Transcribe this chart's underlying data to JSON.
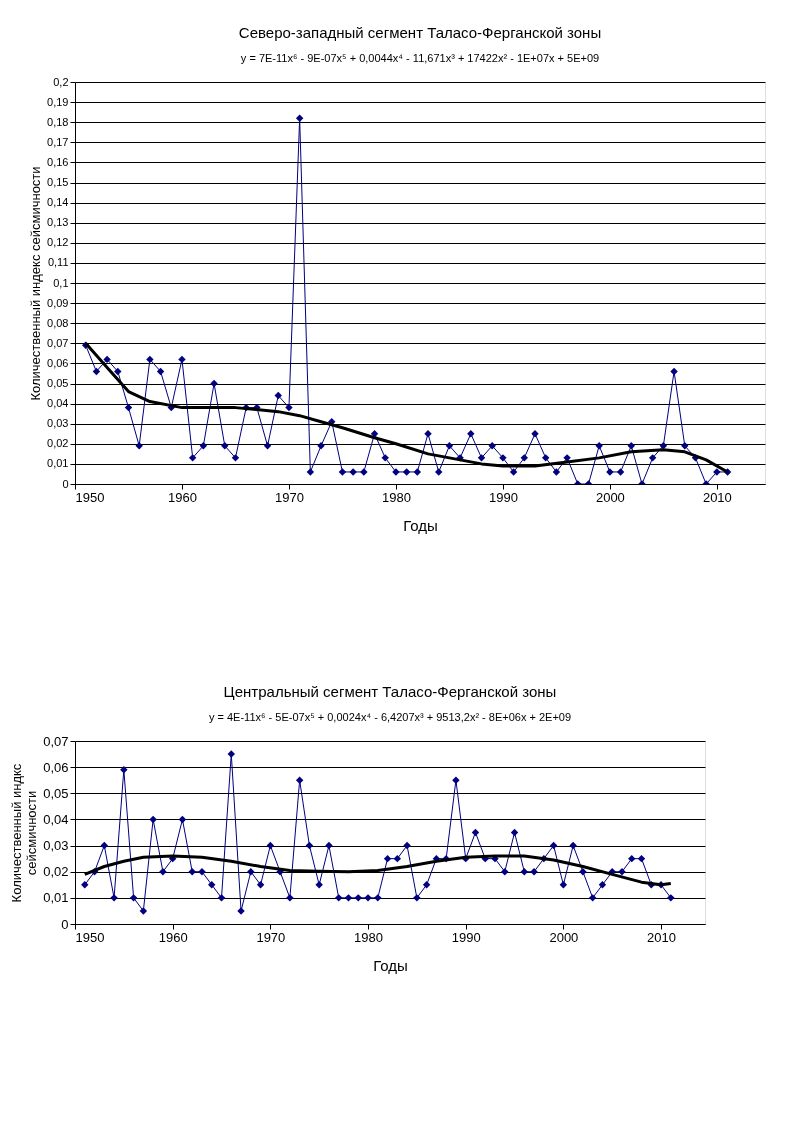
{
  "chart_data": [
    {
      "type": "line",
      "title": "Северо-западный  сегмент Таласо-Ферганской зоны",
      "subtitle": "y = 7E-11x⁶ - 9E-07x⁵ + 0,0044x⁴ - 11,671x³ + 17422x² - 1E+07x  + 5E+09",
      "xlabel": "Годы",
      "ylabel": "Количественный индекс сейсмичности",
      "x": [
        1951,
        1952,
        1953,
        1954,
        1955,
        1956,
        1957,
        1958,
        1959,
        1960,
        1961,
        1962,
        1963,
        1964,
        1965,
        1966,
        1967,
        1968,
        1969,
        1970,
        1971,
        1972,
        1973,
        1974,
        1975,
        1976,
        1977,
        1978,
        1979,
        1980,
        1981,
        1982,
        1983,
        1984,
        1985,
        1986,
        1987,
        1988,
        1989,
        1990,
        1991,
        1992,
        1993,
        1994,
        1995,
        1996,
        1997,
        1998,
        1999,
        2000,
        2001,
        2002,
        2003,
        2004,
        2005,
        2006,
        2007,
        2008,
        2009,
        2010,
        2011
      ],
      "series": [
        {
          "type": "line",
          "marker": "diamond",
          "color": "#000080",
          "values": [
            0.069,
            0.056,
            0.062,
            0.056,
            0.038,
            0.019,
            0.062,
            0.056,
            0.038,
            0.062,
            0.013,
            0.019,
            0.05,
            0.019,
            0.013,
            0.038,
            0.038,
            0.019,
            0.044,
            0.038,
            0.182,
            0.006,
            0.019,
            0.031,
            0.006,
            0.006,
            0.006,
            0.025,
            0.013,
            0.006,
            0.006,
            0.006,
            0.025,
            0.006,
            0.019,
            0.013,
            0.025,
            0.013,
            0.019,
            0.013,
            0.006,
            0.013,
            0.025,
            0.013,
            0.006,
            0.013,
            0,
            0,
            0.019,
            0.006,
            0.006,
            0.019,
            0,
            0.013,
            0.019,
            0.056,
            0.019,
            0.013,
            0,
            0.006,
            0.006
          ]
        },
        {
          "type": "line",
          "marker": "none",
          "color": "#000000",
          "x": [
            1951,
            1953,
            1955,
            1957,
            1960,
            1965,
            1969,
            1971,
            1973,
            1975,
            1978,
            1980,
            1983,
            1986,
            1988,
            1990,
            1993,
            1996,
            1999,
            2002,
            2005,
            2007,
            2009,
            2011
          ],
          "values": [
            0.07,
            0.058,
            0.046,
            0.041,
            0.038,
            0.038,
            0.036,
            0.034,
            0.031,
            0.028,
            0.023,
            0.02,
            0.015,
            0.012,
            0.01,
            0.009,
            0.009,
            0.011,
            0.013,
            0.016,
            0.017,
            0.016,
            0.012,
            0.006
          ]
        }
      ],
      "xlim": [
        1950,
        2014.5
      ],
      "xticks": [
        1950,
        1960,
        1970,
        1980,
        1990,
        2000,
        2010
      ],
      "ylim": [
        0,
        0.2
      ],
      "yticks": [
        0,
        {
          "value": 0.01,
          "label": "0,01"
        },
        {
          "value": 0.02,
          "label": "0,02"
        },
        {
          "value": 0.03,
          "label": "0,03"
        },
        {
          "value": 0.04,
          "label": "0,04"
        },
        {
          "value": 0.05,
          "label": "0,05"
        },
        {
          "value": 0.06,
          "label": "0,06"
        },
        {
          "value": 0.07,
          "label": "0,07"
        },
        {
          "value": 0.08,
          "label": "0,08"
        },
        {
          "value": 0.09,
          "label": "0,09"
        },
        {
          "value": 0.1,
          "label": "0,1"
        },
        {
          "value": 0.11,
          "label": "0,11"
        },
        {
          "value": 0.12,
          "label": "0,12"
        },
        {
          "value": 0.13,
          "label": "0,13"
        },
        {
          "value": 0.14,
          "label": "0,14"
        },
        {
          "value": 0.15,
          "label": "0,15"
        },
        {
          "value": 0.16,
          "label": "0,16"
        },
        {
          "value": 0.17,
          "label": "0,17"
        },
        {
          "value": 0.18,
          "label": "0,18"
        },
        {
          "value": 0.19,
          "label": "0,19"
        },
        {
          "value": 0.2,
          "label": "0,2"
        }
      ],
      "grid": "y",
      "legend": false
    },
    {
      "type": "line",
      "title": "Центральный сегмент Таласо-Ферганской зоны",
      "subtitle": "y = 4E-11x⁶ - 5E-07x⁵ + 0,0024x⁴ - 6,4207x³ + 9513,2x² - 8E+06x  + 2E+09",
      "xlabel": "Годы",
      "ylabel": "Количественный индкс сейсмичности",
      "x": [
        1951,
        1952,
        1953,
        1954,
        1955,
        1956,
        1957,
        1958,
        1959,
        1960,
        1961,
        1962,
        1963,
        1964,
        1965,
        1966,
        1967,
        1968,
        1969,
        1970,
        1971,
        1972,
        1973,
        1974,
        1975,
        1976,
        1977,
        1978,
        1979,
        1980,
        1981,
        1982,
        1983,
        1984,
        1985,
        1986,
        1987,
        1988,
        1989,
        1990,
        1991,
        1992,
        1993,
        1994,
        1995,
        1996,
        1997,
        1998,
        1999,
        2000,
        2001,
        2002,
        2003,
        2004,
        2005,
        2006,
        2007,
        2008,
        2009,
        2010,
        2011
      ],
      "series": [
        {
          "type": "line",
          "marker": "diamond",
          "color": "#000080",
          "values": [
            0.015,
            0.02,
            0.03,
            0.01,
            0.059,
            0.01,
            0.005,
            0.04,
            0.02,
            0.025,
            0.04,
            0.02,
            0.02,
            0.015,
            0.01,
            0.065,
            0.005,
            0.02,
            0.015,
            0.03,
            0.02,
            0.01,
            0.055,
            0.03,
            0.015,
            0.03,
            0.01,
            0.01,
            0.01,
            0.01,
            0.01,
            0.025,
            0.025,
            0.03,
            0.01,
            0.015,
            0.025,
            0.025,
            0.055,
            0.025,
            0.035,
            0.025,
            0.025,
            0.02,
            0.035,
            0.02,
            0.02,
            0.025,
            0.03,
            0.015,
            0.03,
            0.02,
            0.01,
            0.015,
            0.02,
            0.02,
            0.025,
            0.025,
            0.015,
            0.015,
            0.01
          ]
        },
        {
          "type": "line",
          "marker": "none",
          "color": "#000000",
          "x": [
            1951,
            1953,
            1955,
            1957,
            1960,
            1963,
            1966,
            1969,
            1972,
            1975,
            1978,
            1981,
            1984,
            1987,
            1990,
            1993,
            1996,
            1999,
            2002,
            2005,
            2008,
            2010,
            2011
          ],
          "values": [
            0.019,
            0.022,
            0.024,
            0.0255,
            0.026,
            0.0255,
            0.024,
            0.022,
            0.0205,
            0.0202,
            0.02,
            0.0205,
            0.022,
            0.024,
            0.0255,
            0.026,
            0.026,
            0.0245,
            0.022,
            0.019,
            0.016,
            0.015,
            0.0155
          ]
        }
      ],
      "xlim": [
        1950,
        2014.5
      ],
      "xticks": [
        1950,
        1960,
        1970,
        1980,
        1990,
        2000,
        2010
      ],
      "ylim": [
        0,
        0.07
      ],
      "yticks": [
        0,
        {
          "value": 0.01,
          "label": "0,01"
        },
        {
          "value": 0.02,
          "label": "0,02"
        },
        {
          "value": 0.03,
          "label": "0,03"
        },
        {
          "value": 0.04,
          "label": "0,04"
        },
        {
          "value": 0.05,
          "label": "0,05"
        },
        {
          "value": 0.06,
          "label": "0,06"
        },
        {
          "value": 0.07,
          "label": "0,07"
        }
      ],
      "grid": "y",
      "legend": false
    }
  ]
}
